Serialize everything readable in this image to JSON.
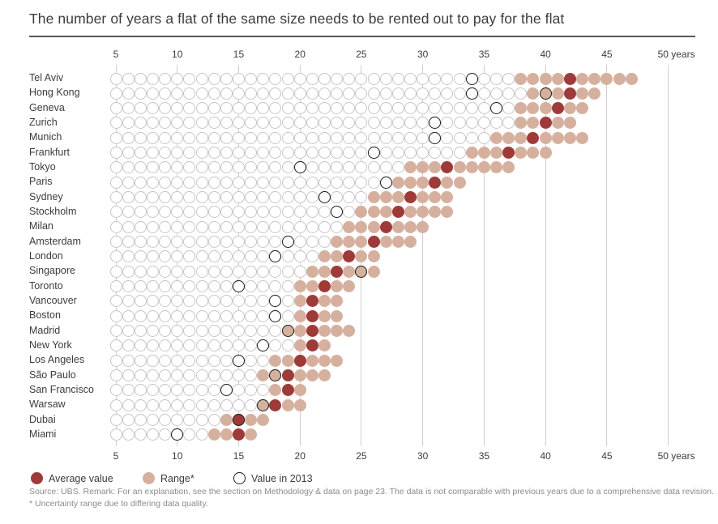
{
  "title": "The number of years a flat of the same size needs to be rented out to pay for the flat",
  "axis": {
    "unit_suffix": "years",
    "ticks": [
      5,
      10,
      15,
      20,
      25,
      30,
      35,
      40,
      45,
      50
    ]
  },
  "legend": {
    "average_label": "Average value",
    "range_label": "Range*",
    "value2013_label": "Value in 2013"
  },
  "footer": {
    "source_line": "Source: UBS. Remark: For an explanation, see the section on Methodology & data on page 23. The data is not comparable with previous years due to a comprehensive data revision.",
    "note_line": "* Uncertainty range due to differing data quality."
  },
  "colors": {
    "average": "#9e3b39",
    "range": "#d6b09e",
    "empty_stroke": "#c6c6c6",
    "value2013_stroke": "#1c1c1c",
    "grid": "#cfcfcf"
  },
  "chart_data": {
    "type": "dot-plot",
    "title": "The number of years a flat of the same size needs to be rented out to pay for the flat",
    "x_unit": "years",
    "x_min": 5,
    "x_max": 50,
    "x_ticks": [
      5,
      10,
      15,
      20,
      25,
      30,
      35,
      40,
      45,
      50
    ],
    "legend": [
      "Average value",
      "Range*",
      "Value in 2013"
    ],
    "series": [
      {
        "city": "Tel Aviv",
        "range": [
          38,
          47
        ],
        "average": 42,
        "values_2013": [
          34
        ]
      },
      {
        "city": "Hong Kong",
        "range": [
          39,
          44
        ],
        "average": 42,
        "values_2013": [
          34,
          40
        ]
      },
      {
        "city": "Geneva",
        "range": [
          38,
          43
        ],
        "average": 41,
        "values_2013": [
          36
        ]
      },
      {
        "city": "Zurich",
        "range": [
          38,
          42
        ],
        "average": 40,
        "values_2013": [
          31
        ]
      },
      {
        "city": "Munich",
        "range": [
          36,
          43
        ],
        "average": 39,
        "values_2013": [
          31
        ]
      },
      {
        "city": "Frankfurt",
        "range": [
          34,
          40
        ],
        "average": 37,
        "values_2013": [
          26
        ]
      },
      {
        "city": "Tokyo",
        "range": [
          29,
          37
        ],
        "average": 32,
        "values_2013": [
          20
        ]
      },
      {
        "city": "Paris",
        "range": [
          28,
          33
        ],
        "average": 31,
        "values_2013": [
          27
        ]
      },
      {
        "city": "Sydney",
        "range": [
          26,
          32
        ],
        "average": 29,
        "values_2013": [
          22
        ]
      },
      {
        "city": "Stockholm",
        "range": [
          25,
          32
        ],
        "average": 28,
        "values_2013": [
          23
        ]
      },
      {
        "city": "Milan",
        "range": [
          24,
          30
        ],
        "average": 27,
        "values_2013": []
      },
      {
        "city": "Amsterdam",
        "range": [
          23,
          29
        ],
        "average": 26,
        "values_2013": [
          19
        ]
      },
      {
        "city": "London",
        "range": [
          22,
          26
        ],
        "average": 24,
        "values_2013": [
          18
        ]
      },
      {
        "city": "Singapore",
        "range": [
          21,
          26
        ],
        "average": 23,
        "values_2013": [
          25
        ]
      },
      {
        "city": "Toronto",
        "range": [
          20,
          24
        ],
        "average": 22,
        "values_2013": [
          15
        ]
      },
      {
        "city": "Vancouver",
        "range": [
          20,
          23
        ],
        "average": 21,
        "values_2013": [
          18
        ]
      },
      {
        "city": "Boston",
        "range": [
          20,
          23
        ],
        "average": 21,
        "values_2013": [
          18
        ]
      },
      {
        "city": "Madrid",
        "range": [
          19,
          24
        ],
        "average": 21,
        "values_2013": [
          19
        ]
      },
      {
        "city": "New York",
        "range": [
          20,
          22
        ],
        "average": 21,
        "values_2013": [
          17
        ]
      },
      {
        "city": "Los Angeles",
        "range": [
          18,
          23
        ],
        "average": 20,
        "values_2013": [
          15
        ]
      },
      {
        "city": "São Paulo",
        "range": [
          17,
          22
        ],
        "average": 19,
        "values_2013": [
          18
        ]
      },
      {
        "city": "San Francisco",
        "range": [
          18,
          20
        ],
        "average": 19,
        "values_2013": [
          14
        ]
      },
      {
        "city": "Warsaw",
        "range": [
          17,
          20
        ],
        "average": 18,
        "values_2013": [
          17
        ]
      },
      {
        "city": "Dubai",
        "range": [
          14,
          17
        ],
        "average": 15,
        "values_2013": [
          15
        ]
      },
      {
        "city": "Miami",
        "range": [
          13,
          16
        ],
        "average": 15,
        "values_2013": [
          10
        ]
      }
    ]
  }
}
